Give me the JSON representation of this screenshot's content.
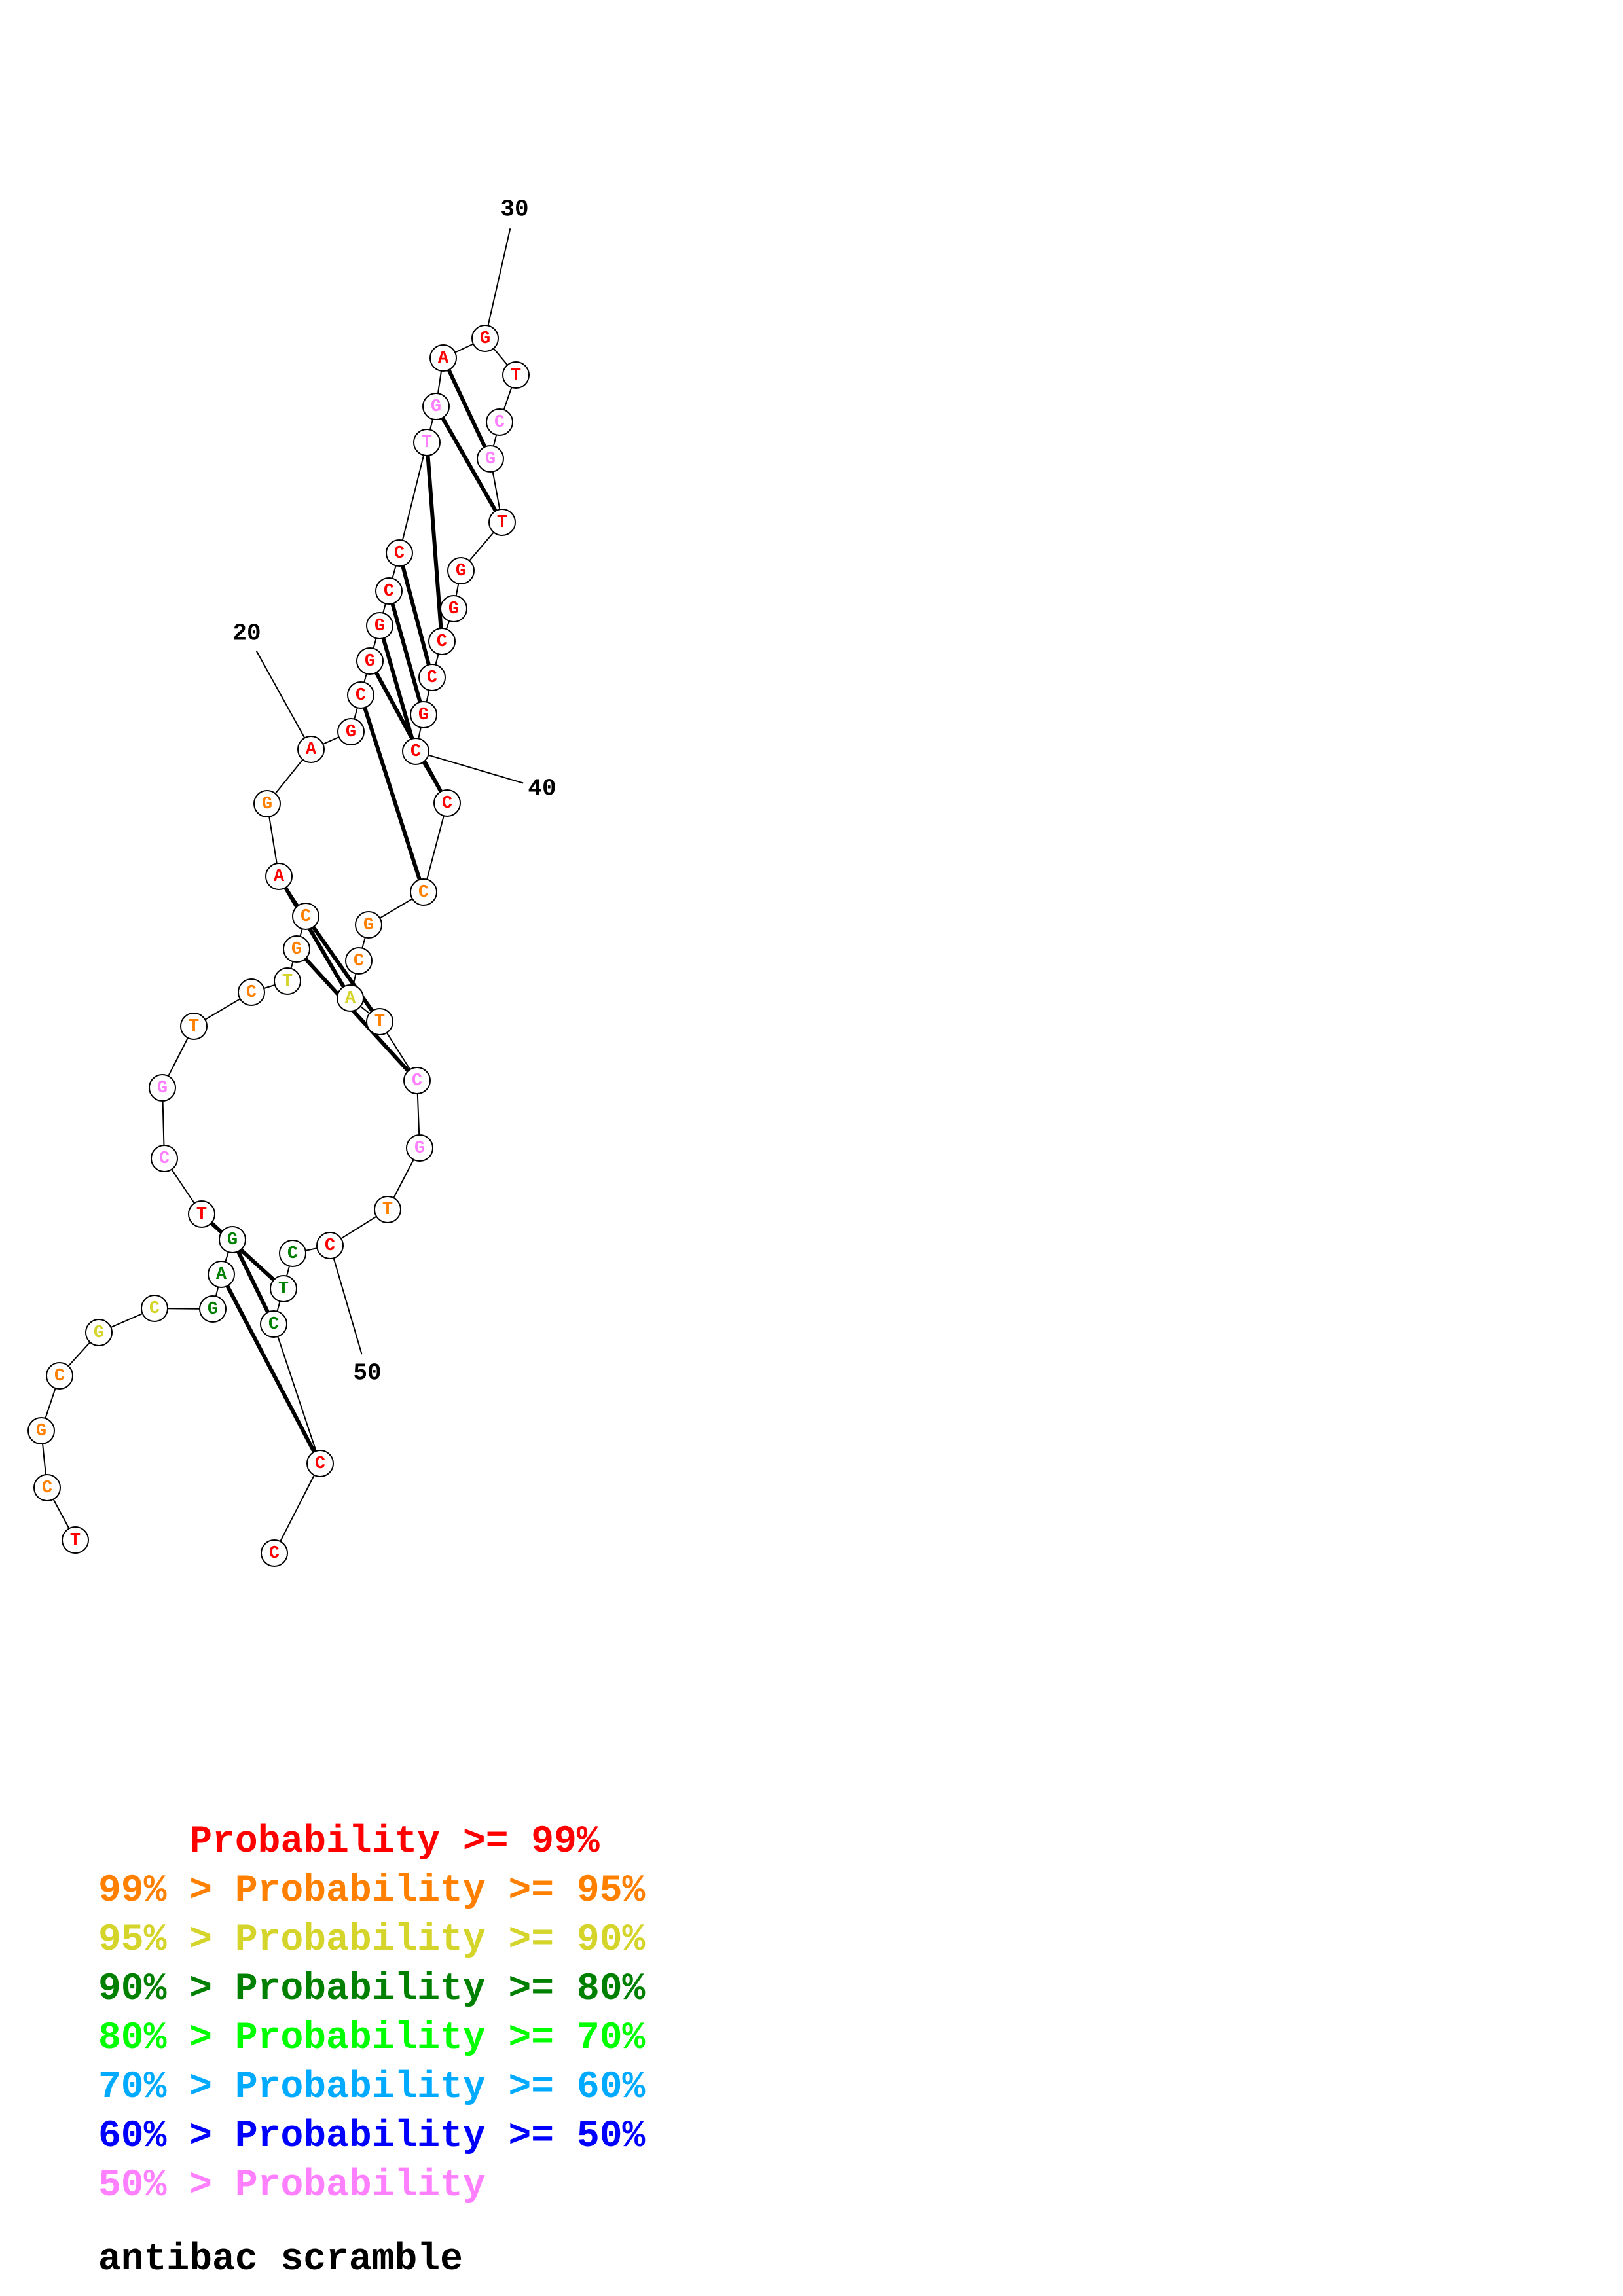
{
  "palette": {
    "p99": "#ff0000",
    "p95": "#ff8000",
    "p90": "#d4d42a",
    "p80": "#008000",
    "p70": "#00ff00",
    "p60": "#00aaff",
    "p50": "#0000ff",
    "plt50": "#ff80ff"
  },
  "nucleotides": [
    {
      "base": "T",
      "cls": "p99"
    },
    {
      "base": "C",
      "cls": "p95"
    },
    {
      "base": "G",
      "cls": "p95"
    },
    {
      "base": "C",
      "cls": "p95"
    },
    {
      "base": "G",
      "cls": "p90"
    },
    {
      "base": "C",
      "cls": "p90"
    },
    {
      "base": "G",
      "cls": "p80"
    },
    {
      "base": "A",
      "cls": "p80"
    },
    {
      "base": "G",
      "cls": "p80"
    },
    {
      "base": "T",
      "cls": "p99"
    },
    {
      "base": "C",
      "cls": "plt50"
    },
    {
      "base": "G",
      "cls": "plt50"
    },
    {
      "base": "T",
      "cls": "p95"
    },
    {
      "base": "C",
      "cls": "p95"
    },
    {
      "base": "T",
      "cls": "p90"
    },
    {
      "base": "G",
      "cls": "p95"
    },
    {
      "base": "C",
      "cls": "p95"
    },
    {
      "base": "A",
      "cls": "p99"
    },
    {
      "base": "G",
      "cls": "p95"
    },
    {
      "base": "A",
      "cls": "p99"
    },
    {
      "base": "G",
      "cls": "p99"
    },
    {
      "base": "C",
      "cls": "p99"
    },
    {
      "base": "G",
      "cls": "p99"
    },
    {
      "base": "G",
      "cls": "p99"
    },
    {
      "base": "C",
      "cls": "p99"
    },
    {
      "base": "C",
      "cls": "p99"
    },
    {
      "base": "T",
      "cls": "plt50"
    },
    {
      "base": "G",
      "cls": "plt50"
    },
    {
      "base": "A",
      "cls": "p99"
    },
    {
      "base": "G",
      "cls": "p99"
    },
    {
      "base": "T",
      "cls": "p99"
    },
    {
      "base": "C",
      "cls": "plt50"
    },
    {
      "base": "G",
      "cls": "plt50"
    },
    {
      "base": "T",
      "cls": "p99"
    },
    {
      "base": "G",
      "cls": "p99"
    },
    {
      "base": "G",
      "cls": "p99"
    },
    {
      "base": "C",
      "cls": "p99"
    },
    {
      "base": "C",
      "cls": "p99"
    },
    {
      "base": "G",
      "cls": "p99"
    },
    {
      "base": "C",
      "cls": "p99"
    },
    {
      "base": "C",
      "cls": "p99"
    },
    {
      "base": "C",
      "cls": "p95"
    },
    {
      "base": "G",
      "cls": "p95"
    },
    {
      "base": "C",
      "cls": "p95"
    },
    {
      "base": "A",
      "cls": "p90"
    },
    {
      "base": "T",
      "cls": "p95"
    },
    {
      "base": "C",
      "cls": "plt50"
    },
    {
      "base": "G",
      "cls": "plt50"
    },
    {
      "base": "T",
      "cls": "p95"
    },
    {
      "base": "C",
      "cls": "p99"
    },
    {
      "base": "C",
      "cls": "p80"
    },
    {
      "base": "T",
      "cls": "p80"
    },
    {
      "base": "C",
      "cls": "p80"
    },
    {
      "base": "C",
      "cls": "p99"
    },
    {
      "base": "C",
      "cls": "p99"
    }
  ],
  "pairs": [
    [
      7,
      53
    ],
    [
      8,
      52
    ],
    [
      9,
      51
    ],
    [
      15,
      46
    ],
    [
      16,
      45
    ],
    [
      17,
      44
    ],
    [
      21,
      41
    ],
    [
      22,
      40
    ],
    [
      23,
      39
    ],
    [
      24,
      38
    ],
    [
      25,
      37
    ],
    [
      26,
      36
    ],
    [
      27,
      33
    ],
    [
      28,
      32
    ]
  ],
  "index_labels": [
    {
      "index": 20,
      "text": "20"
    },
    {
      "index": 30,
      "text": "30"
    },
    {
      "index": 40,
      "text": "40"
    },
    {
      "index": 50,
      "text": "50"
    }
  ],
  "legend": [
    {
      "prefix": "    ",
      "text": "Probability >= 99%",
      "cls": "p99"
    },
    {
      "prefix": "",
      "text": "99% > Probability >= 95%",
      "cls": "p95"
    },
    {
      "prefix": "",
      "text": "95% > Probability >= 90%",
      "cls": "p90"
    },
    {
      "prefix": "",
      "text": "90% > Probability >= 80%",
      "cls": "p80"
    },
    {
      "prefix": "",
      "text": "80% > Probability >= 70%",
      "cls": "p70"
    },
    {
      "prefix": "",
      "text": "70% > Probability >= 60%",
      "cls": "p60"
    },
    {
      "prefix": "",
      "text": "60% > Probability >= 50%",
      "cls": "p50"
    },
    {
      "prefix": "",
      "text": "50% > Probability",
      "cls": "plt50"
    }
  ],
  "caption": "antibac scramble"
}
